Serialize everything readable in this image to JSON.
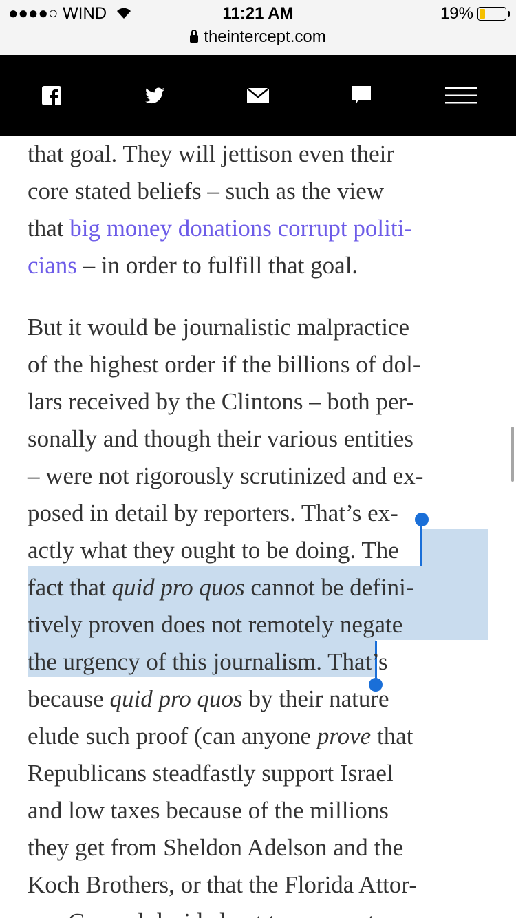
{
  "status_bar": {
    "carrier": "●●●●○ WIND",
    "time": "11:21 AM",
    "battery_percent": "19%",
    "battery_level": 0.19,
    "battery_color": "#f5c000",
    "url": "theintercept.com",
    "icons": [
      "signal-dots-icon",
      "wifi-icon",
      "battery-icon",
      "lock-icon"
    ]
  },
  "navbar": {
    "items": [
      {
        "icon": "facebook-icon"
      },
      {
        "icon": "twitter-icon"
      },
      {
        "icon": "mail-icon"
      },
      {
        "icon": "comment-icon"
      },
      {
        "icon": "hamburger-menu-icon"
      }
    ]
  },
  "colors": {
    "link": "#6d5ce8",
    "selection": "#c9dcee",
    "selection_handle": "#1a6fd8",
    "text": "#333333"
  },
  "article": {
    "lines": [
      [
        {
          "t": "that goal. They will jettison even their"
        }
      ],
      [
        {
          "t": "core stated beliefs – such as the view"
        }
      ],
      [
        {
          "t": "that "
        },
        {
          "t": "big money donations corrupt politi-",
          "s": "link"
        }
      ],
      [
        {
          "t": "cians",
          "s": "link"
        },
        {
          "t": " – in order to fulfill that goal."
        }
      ],
      [
        {
          "t": "But it would be journalistic malpractice"
        }
      ],
      [
        {
          "t": "of the highest order if the billions of dol-"
        }
      ],
      [
        {
          "t": "lars received by the Clintons – both per-"
        }
      ],
      [
        {
          "t": "sonally and though their various entities"
        }
      ],
      [
        {
          "t": "– were not rigorously scrutinized and ex-"
        }
      ],
      [
        {
          "t": "posed in detail by reporters. That’s ex-"
        }
      ],
      [
        {
          "t": "actly what they ought to be doing. "
        },
        {
          "t": "The",
          "s": "sel"
        }
      ],
      [
        {
          "t": "fact that ",
          "s": "sel"
        },
        {
          "t": "quid pro quos",
          "s": "selem"
        },
        {
          "t": " cannot be defini-",
          "s": "sel"
        }
      ],
      [
        {
          "t": "tively proven does not remotely negate",
          "s": "sel"
        }
      ],
      [
        {
          "t": "the urgency of this journalism.",
          "s": "sel"
        },
        {
          "t": " That’s"
        }
      ],
      [
        {
          "t": "because "
        },
        {
          "t": "quid pro quos",
          "s": "em"
        },
        {
          "t": " by their nature"
        }
      ],
      [
        {
          "t": "elude such proof (can anyone "
        },
        {
          "t": "prove",
          "s": "em"
        },
        {
          "t": " that"
        }
      ],
      [
        {
          "t": "Republicans steadfastly support Israel"
        }
      ],
      [
        {
          "t": "and low taxes because of the millions"
        }
      ],
      [
        {
          "t": "they get from Sheldon Adelson and the"
        }
      ],
      [
        {
          "t": "Koch Brothers, or that the Florida Attor-"
        }
      ],
      [
        {
          "t": "ney General decided not to prosecute"
        }
      ]
    ]
  }
}
